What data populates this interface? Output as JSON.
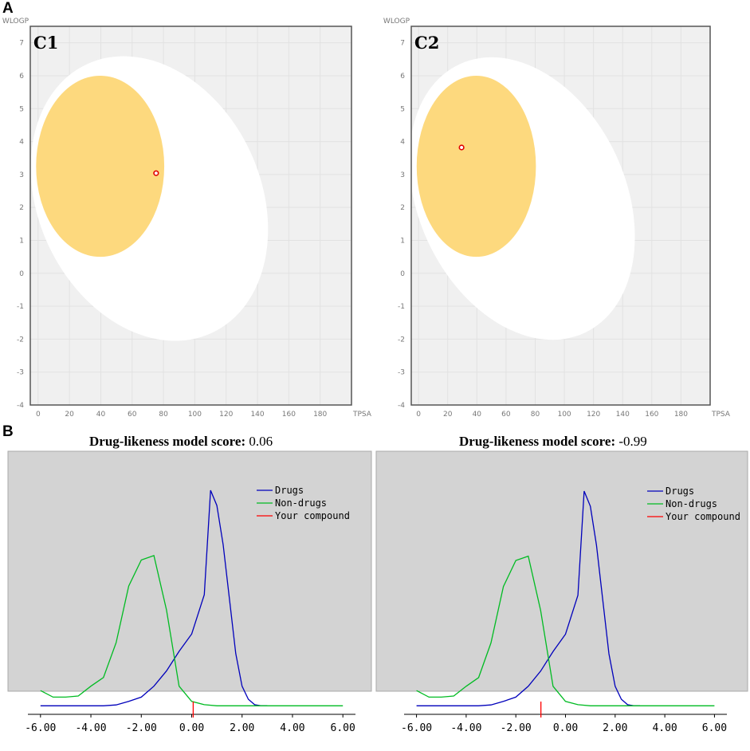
{
  "figure": {
    "panel_a_label": "A",
    "panel_b_label": "B"
  },
  "chart_data": [
    {
      "type": "scatter",
      "id": "C1",
      "xlabel": "TPSA",
      "ylabel": "WLOGP",
      "xlim": [
        -5,
        200
      ],
      "ylim": [
        -4,
        7.5
      ],
      "x_ticks": [
        0,
        20,
        40,
        60,
        80,
        100,
        120,
        140,
        160,
        180
      ],
      "y_ticks": [
        7,
        6,
        5,
        4,
        3,
        2,
        1,
        0,
        -1,
        -2,
        -3,
        -4
      ],
      "regions": [
        {
          "name": "white",
          "cx": 71,
          "cy": 2.27,
          "rx": 71,
          "ry": 4.5,
          "rotation": -25
        },
        {
          "name": "yolk",
          "cx": 39.6,
          "cy": 3.25,
          "rx": 40.9,
          "ry": 2.75,
          "rotation": 0
        }
      ],
      "points": [
        {
          "x": 75.3,
          "y": 3.04
        }
      ]
    },
    {
      "type": "scatter",
      "id": "C2",
      "xlabel": "TPSA",
      "ylabel": "WLOGP",
      "xlim": [
        -5,
        200
      ],
      "ylim": [
        -4,
        7.5
      ],
      "x_ticks": [
        0,
        20,
        40,
        60,
        80,
        100,
        120,
        140,
        160,
        180
      ],
      "y_ticks": [
        7,
        6,
        5,
        4,
        3,
        2,
        1,
        0,
        -1,
        -2,
        -3,
        -4
      ],
      "regions": [
        {
          "name": "white",
          "cx": 71,
          "cy": 2.27,
          "rx": 71,
          "ry": 4.5,
          "rotation": -25
        },
        {
          "name": "yolk",
          "cx": 39.6,
          "cy": 3.25,
          "rx": 40.9,
          "ry": 2.75,
          "rotation": 0
        }
      ],
      "points": [
        {
          "x": 29.5,
          "y": 3.82
        }
      ]
    },
    {
      "type": "line",
      "title": "Drug-likeness model score:",
      "score": "0.06",
      "score_value": 0.06,
      "xlim": [
        -6.5,
        6.5
      ],
      "ylim": [
        0,
        1
      ],
      "x_ticks": [
        "-6.00",
        "-4.00",
        "-2.00",
        "0.00",
        "2.00",
        "4.00",
        "6.00"
      ],
      "legend": [
        "Drugs",
        "Non-drugs",
        "Your compound"
      ],
      "series": [
        {
          "name": "Drugs",
          "color": "#0000bb",
          "x": [
            -6,
            -5.5,
            -5,
            -4.5,
            -4,
            -3.5,
            -3,
            -2.5,
            -2,
            -1.5,
            -1,
            -0.5,
            0,
            0.5,
            0.75,
            1,
            1.25,
            1.5,
            1.75,
            2,
            2.25,
            2.5,
            2.75,
            3
          ],
          "y": [
            0.01,
            0.01,
            0.01,
            0.01,
            0.01,
            0.01,
            0.014,
            0.03,
            0.05,
            0.1,
            0.17,
            0.26,
            0.34,
            0.52,
            1.0,
            0.93,
            0.75,
            0.5,
            0.25,
            0.1,
            0.04,
            0.015,
            0.01,
            0.01
          ]
        },
        {
          "name": "Non-drugs",
          "color": "#00bb22",
          "x": [
            -6,
            -5.5,
            -5,
            -4.5,
            -4,
            -3.5,
            -3,
            -2.5,
            -2,
            -1.5,
            -1,
            -0.5,
            0,
            0.5,
            1,
            1.5,
            2,
            3,
            4,
            5,
            6
          ],
          "y": [
            0.08,
            0.05,
            0.05,
            0.055,
            0.1,
            0.14,
            0.3,
            0.56,
            0.68,
            0.7,
            0.45,
            0.1,
            0.03,
            0.015,
            0.01,
            0.01,
            0.01,
            0.01,
            0.01,
            0.01,
            0.01
          ]
        }
      ],
      "compound_line": {
        "name": "Your compound",
        "color": "#ff0000",
        "x": 0.06
      }
    },
    {
      "type": "line",
      "title": "Drug-likeness model score:",
      "score": "-0.99",
      "score_value": -0.99,
      "xlim": [
        -6.5,
        6.5
      ],
      "ylim": [
        0,
        1
      ],
      "x_ticks": [
        "-6.00",
        "-4.00",
        "-2.00",
        "0.00",
        "2.00",
        "4.00",
        "6.00"
      ],
      "legend": [
        "Drugs",
        "Non-drugs",
        "Your compound"
      ],
      "series": [
        {
          "name": "Drugs",
          "color": "#0000bb",
          "x": [
            -6,
            -5.5,
            -5,
            -4.5,
            -4,
            -3.5,
            -3,
            -2.5,
            -2,
            -1.5,
            -1,
            -0.5,
            0,
            0.5,
            0.75,
            1,
            1.25,
            1.5,
            1.75,
            2,
            2.25,
            2.5,
            2.75,
            3
          ],
          "y": [
            0.01,
            0.01,
            0.01,
            0.01,
            0.01,
            0.01,
            0.014,
            0.03,
            0.05,
            0.1,
            0.17,
            0.26,
            0.34,
            0.52,
            1.0,
            0.93,
            0.75,
            0.5,
            0.25,
            0.1,
            0.04,
            0.015,
            0.01,
            0.01
          ]
        },
        {
          "name": "Non-drugs",
          "color": "#00bb22",
          "x": [
            -6,
            -5.5,
            -5,
            -4.5,
            -4,
            -3.5,
            -3,
            -2.5,
            -2,
            -1.5,
            -1,
            -0.5,
            0,
            0.5,
            1,
            1.5,
            2,
            3,
            4,
            5,
            6
          ],
          "y": [
            0.08,
            0.05,
            0.05,
            0.055,
            0.1,
            0.14,
            0.3,
            0.56,
            0.68,
            0.7,
            0.45,
            0.1,
            0.03,
            0.015,
            0.01,
            0.01,
            0.01,
            0.01,
            0.01,
            0.01,
            0.01
          ]
        }
      ],
      "compound_line": {
        "name": "Your compound",
        "color": "#ff0000",
        "x": -0.99
      }
    }
  ]
}
